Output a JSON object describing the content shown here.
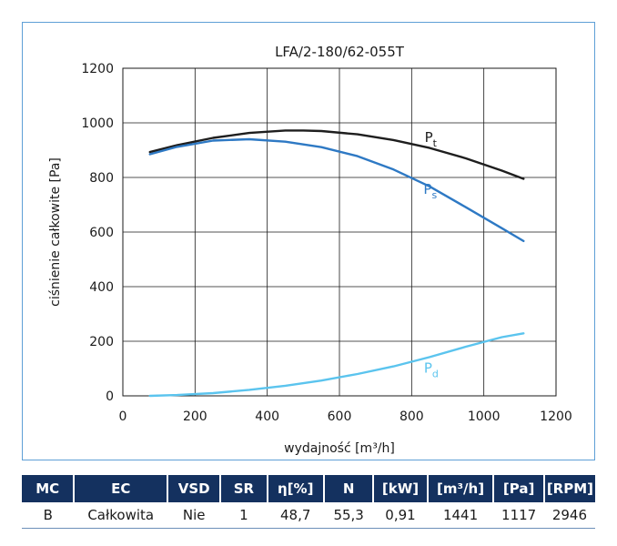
{
  "chart_data": {
    "type": "line",
    "title": "LFA/2-180/62-055T",
    "xlabel": "wydajność [m³/h]",
    "ylabel": "ciśnienie całkowite [Pa]",
    "xlim": [
      0,
      1200
    ],
    "ylim": [
      0,
      1200
    ],
    "xticks": [
      0,
      200,
      400,
      600,
      800,
      1000,
      1200
    ],
    "yticks": [
      0,
      200,
      400,
      600,
      800,
      1000,
      1200
    ],
    "grid": true,
    "series": [
      {
        "name": "Pt",
        "label_main": "P",
        "label_sub": "t",
        "color": "#1e1e1e",
        "x": [
          75,
          150,
          250,
          350,
          450,
          500,
          550,
          650,
          750,
          850,
          950,
          1050,
          1110
        ],
        "y": [
          893,
          918,
          945,
          963,
          972,
          972,
          970,
          958,
          937,
          908,
          870,
          825,
          795
        ]
      },
      {
        "name": "Ps",
        "label_main": "P",
        "label_sub": "s",
        "color": "#2e79c4",
        "x": [
          75,
          150,
          250,
          350,
          450,
          550,
          650,
          750,
          850,
          950,
          1050,
          1110
        ],
        "y": [
          885,
          912,
          935,
          940,
          931,
          911,
          878,
          829,
          767,
          691,
          614,
          567
        ]
      },
      {
        "name": "Pd",
        "label_main": "P",
        "label_sub": "d",
        "color": "#5bc4ee",
        "x": [
          75,
          150,
          250,
          350,
          450,
          550,
          650,
          750,
          850,
          950,
          1050,
          1110
        ],
        "y": [
          0,
          3,
          10,
          22,
          37,
          56,
          80,
          108,
          142,
          180,
          215,
          229
        ]
      }
    ]
  },
  "table": {
    "headers": [
      "MC",
      "EC",
      "VSD",
      "SR",
      "η[%]",
      "N",
      "[kW]",
      "[m³/h]",
      "[Pa]",
      "[RPM]"
    ],
    "row": [
      "B",
      "Całkowita",
      "Nie",
      "1",
      "48,7",
      "55,3",
      "0,91",
      "1441",
      "1117",
      "2946"
    ]
  }
}
